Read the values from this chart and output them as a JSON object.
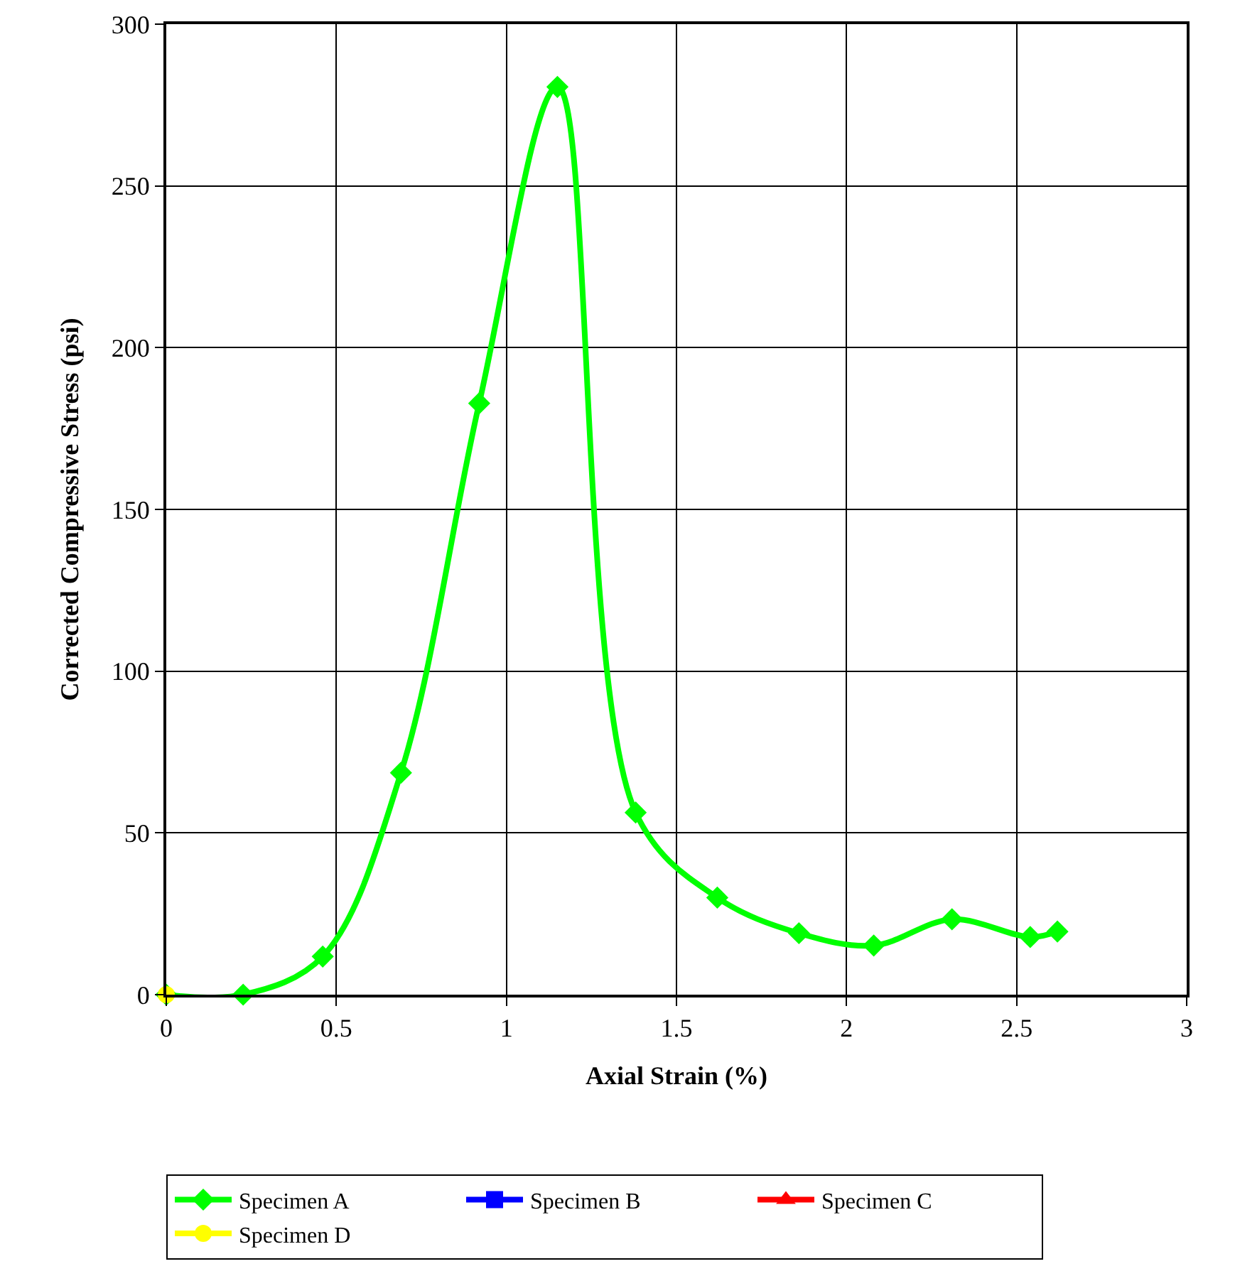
{
  "chart_data": {
    "type": "line",
    "xlabel": "Axial Strain (%)",
    "ylabel": "Corrected Compressive Stress (psi)",
    "xlim": [
      0,
      3
    ],
    "xticks": [
      0,
      0.5,
      1,
      1.5,
      2,
      2.5,
      3
    ],
    "ylim": [
      0,
      300
    ],
    "yticks": [
      0,
      50,
      100,
      150,
      200,
      250,
      300
    ],
    "grid": true,
    "legend": "bottom",
    "line_style": "solid",
    "series": [
      {
        "name": "Specimen A",
        "color": "#00ff00",
        "marker": "diamond",
        "x": [
          0,
          0.226,
          0.46,
          0.69,
          0.92,
          1.15,
          1.38,
          1.62,
          1.86,
          2.08,
          2.31,
          2.54,
          2.62
        ],
        "values": [
          0,
          0,
          11.8,
          68.6,
          182.8,
          280.6,
          56.3,
          30,
          19,
          15.2,
          23.3,
          17.8,
          19.5
        ]
      },
      {
        "name": "Specimen B",
        "color": "#0000ff",
        "marker": "square"
      },
      {
        "name": "Specimen C",
        "color": "#ff0000",
        "marker": "triangle"
      },
      {
        "name": "Specimen D",
        "color": "#ffff00",
        "marker": "circle",
        "x": [
          0
        ],
        "values": [
          0
        ]
      }
    ]
  }
}
